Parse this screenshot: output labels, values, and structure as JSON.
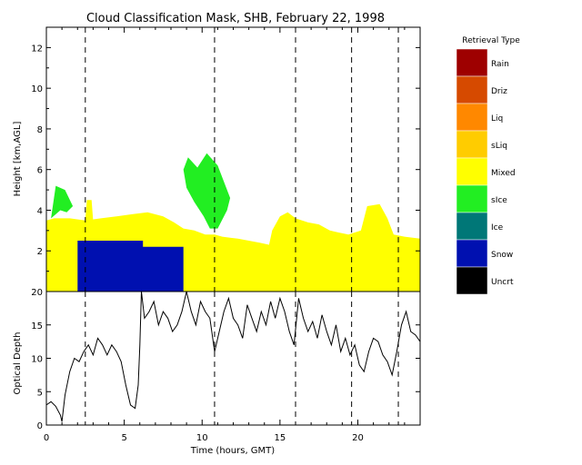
{
  "chart_data": [
    {
      "type": "heatmap",
      "title": "Cloud Classification Mask, SHB, February 22, 1998",
      "ylabel": "Height [km,AGL]",
      "xlim": [
        0,
        24
      ],
      "ylim": [
        0,
        13
      ],
      "yticks": [
        "0",
        "2",
        "4",
        "6",
        "8",
        "10",
        "12"
      ],
      "vertical_markers": [
        2.5,
        10.8,
        16.0,
        19.6,
        22.6
      ],
      "regions": [
        {
          "class": "Mixed",
          "points": [
            [
              0,
              0
            ],
            [
              0,
              3.5
            ],
            [
              0.5,
              3.6
            ],
            [
              1.5,
              3.6
            ],
            [
              2.5,
              3.5
            ],
            [
              3.5,
              3.6
            ],
            [
              4.5,
              3.7
            ],
            [
              5.5,
              3.8
            ],
            [
              6.5,
              3.9
            ],
            [
              7.5,
              3.7
            ],
            [
              8.2,
              3.4
            ],
            [
              8.8,
              3.1
            ],
            [
              9.5,
              3.0
            ],
            [
              10.2,
              2.8
            ],
            [
              10.8,
              2.8
            ],
            [
              11.3,
              2.7
            ],
            [
              12.3,
              2.6
            ],
            [
              13,
              2.5
            ],
            [
              13.7,
              2.4
            ],
            [
              14.3,
              2.3
            ],
            [
              14.5,
              3.0
            ],
            [
              15.0,
              3.7
            ],
            [
              15.5,
              3.9
            ],
            [
              16.0,
              3.6
            ],
            [
              16.8,
              3.4
            ],
            [
              17.5,
              3.3
            ],
            [
              18.2,
              3.0
            ],
            [
              18.8,
              2.9
            ],
            [
              19.4,
              2.8
            ],
            [
              20.2,
              3.0
            ],
            [
              20.6,
              4.2
            ],
            [
              21.4,
              4.3
            ],
            [
              21.9,
              3.6
            ],
            [
              22.3,
              2.8
            ],
            [
              23,
              2.7
            ],
            [
              24,
              2.6
            ],
            [
              24,
              0
            ]
          ]
        },
        {
          "class": "Mixed",
          "points": [
            [
              2.5,
              3.5
            ],
            [
              2.6,
              4.5
            ],
            [
              2.9,
              4.5
            ],
            [
              3.0,
              3.5
            ]
          ]
        },
        {
          "class": "sIce",
          "points": [
            [
              0.3,
              3.6
            ],
            [
              0.6,
              5.2
            ],
            [
              1.2,
              5.0
            ],
            [
              1.7,
              4.2
            ],
            [
              1.3,
              3.9
            ],
            [
              0.9,
              4.0
            ]
          ]
        },
        {
          "class": "sIce",
          "points": [
            [
              8.8,
              6.0
            ],
            [
              9.1,
              6.6
            ],
            [
              9.7,
              6.1
            ],
            [
              10.3,
              6.8
            ],
            [
              11.0,
              6.2
            ],
            [
              11.8,
              4.6
            ],
            [
              11.6,
              4.0
            ],
            [
              11.0,
              3.1
            ],
            [
              10.5,
              3.1
            ],
            [
              10.1,
              3.7
            ],
            [
              9.5,
              4.4
            ],
            [
              9.0,
              5.1
            ]
          ]
        },
        {
          "class": "Snow",
          "points": [
            [
              2.0,
              0
            ],
            [
              2.0,
              2.5
            ],
            [
              6.2,
              2.5
            ],
            [
              6.2,
              2.2
            ],
            [
              8.8,
              2.2
            ],
            [
              8.8,
              0
            ]
          ]
        }
      ],
      "legend": {
        "title": "Retrieval Type",
        "entries": [
          {
            "label": "Rain",
            "color": "#9e0000"
          },
          {
            "label": "Driz",
            "color": "#d64a00"
          },
          {
            "label": "Liq",
            "color": "#ff8800"
          },
          {
            "label": "sLiq",
            "color": "#ffcc00"
          },
          {
            "label": "Mixed",
            "color": "#ffff00"
          },
          {
            "label": "sIce",
            "color": "#22ee22"
          },
          {
            "label": "Ice",
            "color": "#007777"
          },
          {
            "label": "Snow",
            "color": "#0010b0"
          },
          {
            "label": "Uncrt",
            "color": "#000000"
          }
        ]
      }
    },
    {
      "type": "line",
      "xlabel": "Time (hours, GMT)",
      "ylabel": "Optical Depth",
      "xlim": [
        0,
        24
      ],
      "ylim": [
        0,
        20
      ],
      "xticks": [
        "0",
        "5",
        "10",
        "15",
        "20"
      ],
      "yticks": [
        "0",
        "5",
        "10",
        "15",
        "20"
      ],
      "vertical_markers": [
        2.5,
        10.8,
        16.0,
        19.6,
        22.6
      ],
      "series": [
        {
          "x": [
            0,
            0.3,
            0.6,
            0.9,
            1.0,
            1.2,
            1.5,
            1.8,
            2.1,
            2.4,
            2.7,
            3.0,
            3.3,
            3.6,
            3.9,
            4.2,
            4.5,
            4.8,
            5.1,
            5.4,
            5.7,
            5.9,
            6.0,
            6.1,
            6.3,
            6.6,
            6.9,
            7.2,
            7.5,
            7.8,
            8.1,
            8.4,
            8.7,
            9.0,
            9.3,
            9.6,
            9.9,
            10.2,
            10.5,
            10.8,
            11.1,
            11.4,
            11.7,
            12.0,
            12.3,
            12.6,
            12.9,
            13.2,
            13.5,
            13.8,
            14.1,
            14.4,
            14.7,
            15.0,
            15.3,
            15.6,
            15.9,
            16.2,
            16.5,
            16.8,
            17.1,
            17.4,
            17.7,
            18.0,
            18.3,
            18.6,
            18.9,
            19.2,
            19.5,
            19.8,
            20.1,
            20.4,
            20.7,
            21.0,
            21.3,
            21.6,
            21.9,
            22.2,
            22.5,
            22.8,
            23.1,
            23.4,
            23.7,
            24.0
          ],
          "values": [
            3,
            3.5,
            2.8,
            1.5,
            0.5,
            4.5,
            8,
            10,
            9.5,
            11,
            12,
            10.5,
            13,
            12,
            10.5,
            12,
            11,
            9.5,
            6,
            3,
            2.5,
            6,
            12,
            20,
            16,
            17,
            18.5,
            15,
            17,
            16,
            14,
            15,
            17,
            20,
            17,
            15,
            18.5,
            17,
            16,
            11,
            14,
            17,
            19,
            16,
            15,
            13,
            18,
            16,
            14,
            17,
            15,
            18.5,
            16,
            19,
            17,
            14,
            12,
            19,
            16,
            14,
            15.5,
            13,
            16.5,
            14,
            12,
            15,
            11,
            13,
            10.5,
            12,
            9,
            8,
            11,
            13,
            12.5,
            10.5,
            9.5,
            7.5,
            11,
            15,
            17,
            14,
            13.5,
            12.5
          ]
        }
      ]
    }
  ]
}
